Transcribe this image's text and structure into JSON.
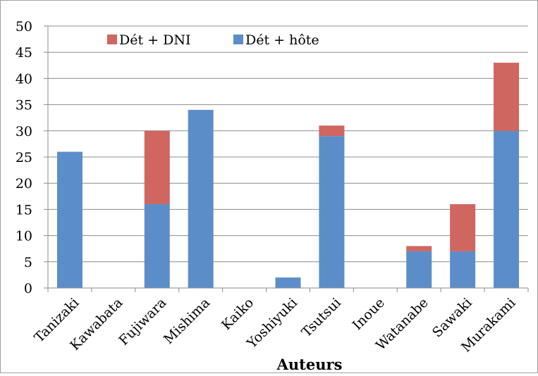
{
  "chart_data": {
    "type": "bar",
    "stacked": true,
    "title": "",
    "xlabel": "Auteurs",
    "ylabel": "",
    "ylim": [
      0,
      50
    ],
    "yticks": [
      0,
      5,
      10,
      15,
      20,
      25,
      30,
      35,
      40,
      45,
      50
    ],
    "grid": "horizontal",
    "legend_position": "top-left",
    "categories": [
      "Tanizaki",
      "Kawabata",
      "Fujiwara",
      "Mishima",
      "Kaiko",
      "Yoshiyuki",
      "Tsutsui",
      "Inoue",
      "Watanabe",
      "Sawaki",
      "Murakami"
    ],
    "series": [
      {
        "name": "Dét + hôte",
        "color": "#5b8ec8",
        "values": [
          26,
          0,
          16,
          34,
          0,
          2,
          29,
          0,
          7,
          7,
          30
        ]
      },
      {
        "name": "Dét + DNI",
        "color": "#cf6660",
        "values": [
          0,
          0,
          14,
          0,
          0,
          0,
          2,
          0,
          1,
          9,
          13
        ]
      }
    ],
    "legend_order": [
      "Dét + DNI",
      "Dét + hôte"
    ]
  }
}
